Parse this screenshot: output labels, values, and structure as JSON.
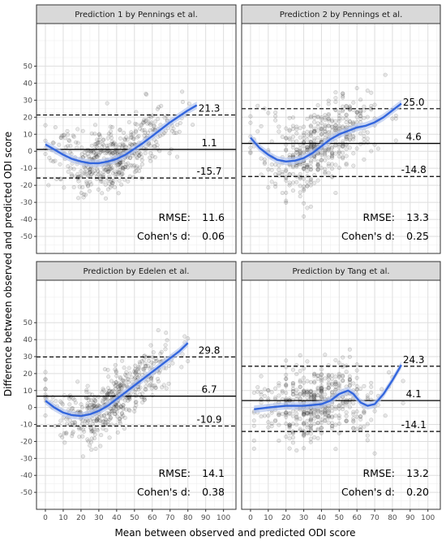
{
  "chart_data": [
    {
      "type": "scatter",
      "title": "Prediction 1 by Pennings et al.",
      "xlim": [
        -5,
        107
      ],
      "ylim": [
        -60,
        75
      ],
      "mean_diff": 1.1,
      "upper_loa": 21.3,
      "lower_loa": -15.7,
      "mean_label": "1.1",
      "upper_label": "21.3",
      "lower_label": "-15.7",
      "rmse_label": "RMSE:",
      "rmse": "11.6",
      "cohen_label": "Cohen's d:",
      "cohen": "0.06",
      "smooth": [
        [
          0,
          4
        ],
        [
          5,
          1
        ],
        [
          10,
          -2
        ],
        [
          15,
          -4.5
        ],
        [
          20,
          -6
        ],
        [
          25,
          -7
        ],
        [
          30,
          -7
        ],
        [
          35,
          -6
        ],
        [
          40,
          -4.5
        ],
        [
          45,
          -2
        ],
        [
          50,
          1.5
        ],
        [
          55,
          5
        ],
        [
          60,
          9
        ],
        [
          65,
          13
        ],
        [
          70,
          17
        ],
        [
          75,
          20.5
        ],
        [
          80,
          24
        ],
        [
          85,
          27
        ]
      ],
      "points_style": "dense-fan",
      "point_range": [
        0,
        85
      ],
      "point_spread": 9
    },
    {
      "type": "scatter",
      "title": "Prediction 2 by Pennings et al.",
      "xlim": [
        -5,
        107
      ],
      "ylim": [
        -60,
        75
      ],
      "mean_diff": 4.6,
      "upper_loa": 25.0,
      "lower_loa": -14.8,
      "mean_label": "4.6",
      "upper_label": "25.0",
      "lower_label": "-14.8",
      "rmse_label": "RMSE:",
      "rmse": "13.3",
      "cohen_label": "Cohen's d:",
      "cohen": "0.25",
      "smooth": [
        [
          0,
          8
        ],
        [
          5,
          2
        ],
        [
          10,
          -2
        ],
        [
          15,
          -5
        ],
        [
          20,
          -6
        ],
        [
          25,
          -5.5
        ],
        [
          30,
          -4
        ],
        [
          35,
          -1
        ],
        [
          40,
          3
        ],
        [
          45,
          7
        ],
        [
          50,
          10
        ],
        [
          55,
          12
        ],
        [
          60,
          14
        ],
        [
          65,
          15
        ],
        [
          70,
          17
        ],
        [
          75,
          20
        ],
        [
          80,
          24
        ],
        [
          85,
          28
        ]
      ],
      "points_style": "diagonal-bands",
      "point_range": [
        0,
        85
      ],
      "point_spread": 10
    },
    {
      "type": "scatter",
      "title": "Prediction by Edelen et al.",
      "xlim": [
        -5,
        107
      ],
      "ylim": [
        -60,
        75
      ],
      "mean_diff": 6.7,
      "upper_loa": 29.8,
      "lower_loa": -10.9,
      "mean_label": "6.7",
      "upper_label": "29.8",
      "lower_label": "-10.9",
      "rmse_label": "RMSE:",
      "rmse": "14.1",
      "cohen_label": "Cohen's d:",
      "cohen": "0.38",
      "smooth": [
        [
          0,
          4
        ],
        [
          5,
          0
        ],
        [
          10,
          -3
        ],
        [
          15,
          -4.5
        ],
        [
          20,
          -5
        ],
        [
          25,
          -4
        ],
        [
          30,
          -2
        ],
        [
          35,
          1
        ],
        [
          40,
          5
        ],
        [
          45,
          9
        ],
        [
          50,
          13
        ],
        [
          55,
          17
        ],
        [
          60,
          21
        ],
        [
          65,
          25
        ],
        [
          70,
          29
        ],
        [
          75,
          33
        ],
        [
          80,
          38
        ]
      ],
      "points_style": "dense-fan",
      "point_range": [
        0,
        80
      ],
      "point_spread": 8
    },
    {
      "type": "scatter",
      "title": "Prediction by Tang et al.",
      "xlim": [
        -5,
        107
      ],
      "ylim": [
        -60,
        75
      ],
      "mean_diff": 4.1,
      "upper_loa": 24.3,
      "lower_loa": -14.1,
      "mean_label": "4.1",
      "upper_label": "24.3",
      "lower_label": "-14.1",
      "rmse_label": "RMSE:",
      "rmse": "13.2",
      "cohen_label": "Cohen's d:",
      "cohen": "0.20",
      "smooth": [
        [
          2,
          -1
        ],
        [
          10,
          0
        ],
        [
          20,
          1
        ],
        [
          30,
          1
        ],
        [
          40,
          2
        ],
        [
          45,
          4
        ],
        [
          50,
          8
        ],
        [
          55,
          10
        ],
        [
          58,
          8
        ],
        [
          62,
          3
        ],
        [
          66,
          1
        ],
        [
          70,
          2
        ],
        [
          75,
          8
        ],
        [
          80,
          16
        ],
        [
          85,
          25
        ]
      ],
      "points_style": "diagonal-bands",
      "point_range": [
        2,
        85
      ],
      "point_spread": 10
    }
  ],
  "axes": {
    "xlabel": "Mean between observed and predicted ODI score",
    "ylabel": "Difference between observed and predicted ODI score",
    "x_ticks": [
      0,
      10,
      20,
      30,
      40,
      50,
      60,
      70,
      80,
      90,
      100
    ],
    "y_ticks": [
      -50,
      -40,
      -30,
      -20,
      -10,
      0,
      10,
      20,
      30,
      40,
      50
    ]
  },
  "colors": {
    "smooth": "#3366dd",
    "smooth_band": "#b8c8ee",
    "strip_bg": "#d9d9d9",
    "grid_major": "#dedede",
    "grid_minor": "#f0f0f0",
    "panel_border": "#333333",
    "points": "#000000"
  }
}
